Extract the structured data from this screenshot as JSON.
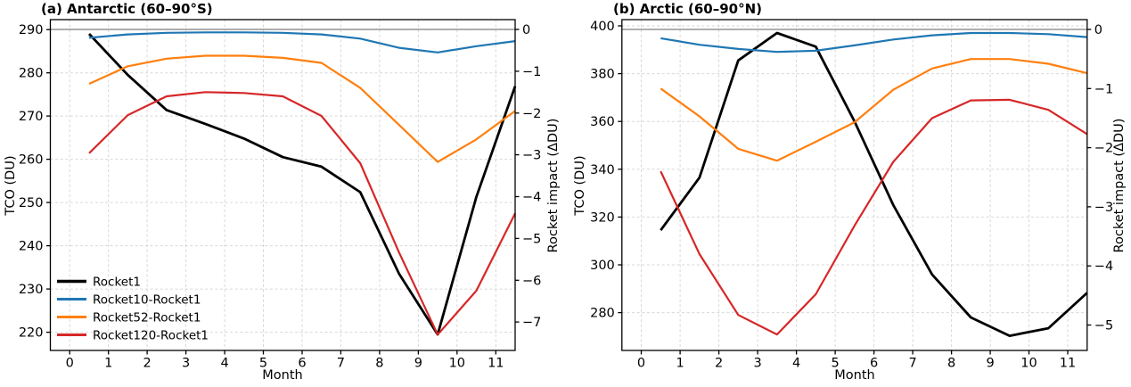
{
  "colors": {
    "background": "#ffffff",
    "grid": "#d7d7d7",
    "zero_line": "#7f7f7f",
    "spine": "#000000",
    "text": "#000000"
  },
  "chart_data": [
    {
      "type": "line",
      "title": "(a) Antarctic (60–90°S)",
      "xlabel": "Month",
      "ylabel_left": "TCO (DU)",
      "ylabel_right": "Rocket impact (ΔDU)",
      "grid": true,
      "legend_visible": true,
      "legend_position": "lower left",
      "x": [
        0.5,
        1.5,
        2.5,
        3.5,
        4.5,
        5.5,
        6.5,
        7.5,
        8.5,
        9.5,
        10.5,
        11.5
      ],
      "xlim": [
        -0.5,
        11.5
      ],
      "xticks": [
        0,
        1,
        2,
        3,
        4,
        5,
        6,
        7,
        8,
        9,
        10,
        11
      ],
      "ylim_left": [
        215.8,
        292.3
      ],
      "yticks_left": [
        220,
        230,
        240,
        250,
        260,
        270,
        280,
        290
      ],
      "ylim_right": [
        -7.68,
        0.235
      ],
      "yticks_right": [
        0,
        -1,
        -2,
        -3,
        -4,
        -5,
        -6,
        -7
      ],
      "zero_line_right": 0,
      "series": [
        {
          "name": "Rocket1",
          "axis": "left",
          "color": "#000000",
          "width": 2.8,
          "values": [
            289.0,
            279.5,
            271.4,
            268.2,
            264.8,
            260.5,
            258.3,
            252.4,
            233.6,
            219.5,
            251.3,
            276.9
          ]
        },
        {
          "name": "Rocket10-Rocket1",
          "axis": "right",
          "color": "#1f77b4",
          "width": 2.2,
          "values": [
            -0.2,
            -0.12,
            -0.08,
            -0.07,
            -0.07,
            -0.08,
            -0.12,
            -0.22,
            -0.44,
            -0.55,
            -0.4,
            -0.28
          ]
        },
        {
          "name": "Rocket52-Rocket1",
          "axis": "right",
          "color": "#ff7f0e",
          "width": 2.2,
          "values": [
            -1.3,
            -0.88,
            -0.7,
            -0.63,
            -0.63,
            -0.68,
            -0.8,
            -1.4,
            -2.28,
            -3.17,
            -2.63,
            -1.95
          ]
        },
        {
          "name": "Rocket120-Rocket1",
          "axis": "right",
          "color": "#d62728",
          "width": 2.2,
          "values": [
            -2.96,
            -2.05,
            -1.6,
            -1.5,
            -1.52,
            -1.6,
            -2.07,
            -3.2,
            -5.33,
            -7.3,
            -6.25,
            -4.4
          ]
        }
      ]
    },
    {
      "type": "line",
      "title": "(b) Arctic (60–90°N)",
      "xlabel": "Month",
      "ylabel_left": "TCO (DU)",
      "ylabel_right": "Rocket impact (ΔDU)",
      "grid": true,
      "legend_visible": false,
      "x": [
        0.5,
        1.5,
        2.5,
        3.5,
        4.5,
        5.5,
        6.5,
        7.5,
        8.5,
        9.5,
        10.5,
        11.5
      ],
      "xlim": [
        -0.5,
        11.5
      ],
      "xticks": [
        0,
        1,
        2,
        3,
        4,
        5,
        6,
        7,
        8,
        9,
        10,
        11
      ],
      "ylim_left": [
        264.2,
        402.6
      ],
      "yticks_left": [
        280,
        300,
        320,
        340,
        360,
        380,
        400
      ],
      "ylim_right": [
        -5.43,
        0.166
      ],
      "yticks_right": [
        0,
        -1,
        -2,
        -3,
        -4,
        -5
      ],
      "zero_line_right": 0,
      "series": [
        {
          "name": "Rocket1",
          "axis": "left",
          "color": "#000000",
          "width": 2.8,
          "values": [
            314.5,
            336.5,
            385.5,
            397.0,
            391.3,
            360.0,
            325.0,
            296.0,
            278.0,
            270.3,
            273.5,
            288.3
          ]
        },
        {
          "name": "Rocket10-Rocket1",
          "axis": "right",
          "color": "#1f77b4",
          "width": 2.2,
          "values": [
            -0.15,
            -0.26,
            -0.33,
            -0.38,
            -0.36,
            -0.27,
            -0.17,
            -0.1,
            -0.06,
            -0.06,
            -0.08,
            -0.13
          ]
        },
        {
          "name": "Rocket52-Rocket1",
          "axis": "right",
          "color": "#ff7f0e",
          "width": 2.2,
          "values": [
            -1.0,
            -1.47,
            -2.02,
            -2.22,
            -1.9,
            -1.57,
            -1.02,
            -0.66,
            -0.5,
            -0.5,
            -0.58,
            -0.74
          ]
        },
        {
          "name": "Rocket120-Rocket1",
          "axis": "right",
          "color": "#d62728",
          "width": 2.2,
          "values": [
            -2.4,
            -3.8,
            -4.83,
            -5.16,
            -4.48,
            -3.32,
            -2.24,
            -1.5,
            -1.2,
            -1.19,
            -1.36,
            -1.77
          ]
        }
      ]
    }
  ]
}
